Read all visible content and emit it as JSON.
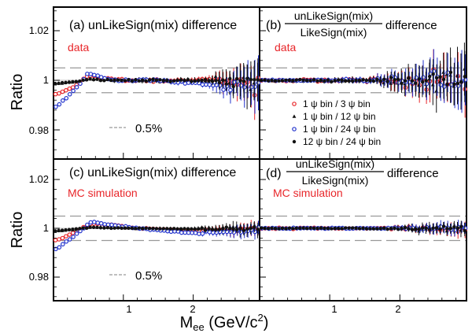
{
  "figure": {
    "ylabel": "Ratio",
    "xlabel_main": "M",
    "xlabel_sub": "ee",
    "xlabel_units": " (GeV/c",
    "xlabel_sup": "2",
    "xlabel_close": ")",
    "xticks": [
      "1",
      "2"
    ],
    "yticks": [
      "1.02",
      "1",
      "0.98"
    ],
    "band_label": "0.5%"
  },
  "colors": {
    "red": "#e8262a",
    "black": "#111111",
    "blue": "#2233cc",
    "dash": "#999999",
    "label_red": "#e8262a"
  },
  "panels": {
    "a": {
      "title": "(a) unLikeSign(mix) difference",
      "tag": "data"
    },
    "b": {
      "title_prefix": "(b)",
      "numerator": "unLikeSign(mix)",
      "denominator": "LikeSign(mix)",
      "title_suffix": "difference",
      "tag": "data"
    },
    "c": {
      "title": "(c) unLikeSign(mix) difference",
      "tag": "MC simulation"
    },
    "d": {
      "title_prefix": "(d)",
      "numerator": "unLikeSign(mix)",
      "denominator": "LikeSign(mix)",
      "title_suffix": "difference",
      "tag": "MC simulation"
    }
  },
  "legend": [
    {
      "label": "1 ψ bin / 3   ψ bin",
      "marker": "open-circle",
      "color": "red"
    },
    {
      "label": "1 ψ bin / 12 ψ bin",
      "marker": "triangle",
      "color": "black"
    },
    {
      "label": "1 ψ bin / 24 ψ bin",
      "marker": "open-circle",
      "color": "blue"
    },
    {
      "label": "12 ψ bin / 24 ψ bin",
      "marker": "filled-circle",
      "color": "black"
    }
  ],
  "chart_data": {
    "type": "scatter",
    "xlabel": "Mee (GeV/c2)",
    "ylabel": "Ratio",
    "xlim": [
      0.0,
      2.95
    ],
    "ylim": [
      0.97,
      1.03
    ],
    "xticks": [
      1,
      2
    ],
    "yticks": [
      0.98,
      1.0,
      1.02
    ],
    "reference_lines": [
      1.0,
      0.995,
      1.005
    ],
    "series_names": [
      "1 ψ bin / 3 ψ bin",
      "1 ψ bin / 12 ψ bin",
      "1 ψ bin / 24 ψ bin",
      "12 ψ bin / 24 ψ bin"
    ],
    "panels": [
      {
        "id": "a",
        "sample": "data",
        "shape": "low-mass dip then peak near 0.5 GeV/c2, flat thereafter, growing scatter above 2.3",
        "series": [
          {
            "name": "1 ψ bin / 3 ψ bin",
            "x": [
              0.05,
              0.3,
              0.5,
              0.7,
              1.0,
              1.5,
              2.0,
              2.5,
              2.8
            ],
            "y": [
              0.9945,
              0.9975,
              1.0022,
              1.001,
              1.0,
              1.0,
              1.0,
              1.0,
              0.999
            ]
          },
          {
            "name": "1 ψ bin / 24 ψ bin",
            "x": [
              0.05,
              0.3,
              0.5,
              0.7,
              1.0,
              1.5,
              2.0,
              2.5,
              2.8
            ],
            "y": [
              0.9895,
              0.996,
              1.0028,
              1.001,
              1.0,
              1.0,
              0.999,
              0.997,
              0.998
            ]
          }
        ]
      },
      {
        "id": "b",
        "sample": "data",
        "shape": "flat at 1 with growing scatter at high mass"
      },
      {
        "id": "c",
        "sample": "MC simulation",
        "shape": "low-mass dip then peak near 0.55 GeV/c2, flat thereafter",
        "series": [
          {
            "name": "1 ψ bin / 3 ψ bin",
            "x": [
              0.05,
              0.3,
              0.55,
              0.8,
              1.2,
              2.0,
              2.9
            ],
            "y": [
              0.995,
              0.9985,
              1.002,
              1.0015,
              1.0,
              0.999,
              0.9995
            ]
          },
          {
            "name": "1 ψ bin / 24 ψ bin",
            "x": [
              0.05,
              0.3,
              0.55,
              0.8,
              1.2,
              2.0,
              2.9
            ],
            "y": [
              0.9915,
              0.997,
              1.0028,
              1.0015,
              1.0,
              0.998,
              0.999
            ]
          }
        ]
      },
      {
        "id": "d",
        "sample": "MC simulation",
        "shape": "flat at 1 with small scatter"
      }
    ]
  }
}
